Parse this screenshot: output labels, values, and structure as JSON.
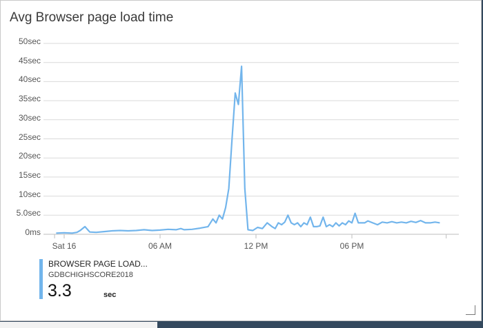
{
  "title": "Avg Browser page load time",
  "legend": {
    "name": "BROWSER PAGE LOAD...",
    "resource": "GDBCHIGHSCORE2018",
    "value": "3.3",
    "unit": "sec",
    "color": "#72b5ec"
  },
  "chart_data": {
    "type": "line",
    "title": "Avg Browser page load time",
    "ylim": [
      0,
      50
    ],
    "y_ticks": [
      "0ms",
      "5.0sec",
      "10sec",
      "15sec",
      "20sec",
      "25sec",
      "30sec",
      "35sec",
      "40sec",
      "45sec",
      "50sec"
    ],
    "x_ticks": [
      "Sat 16",
      "06 AM",
      "12 PM",
      "06 PM"
    ],
    "x_tick_hours": [
      0,
      6,
      12,
      18
    ],
    "grid": true,
    "series": [
      {
        "name": "BROWSER PAGE LOAD...",
        "color": "#72b5ec",
        "x": [
          -0.5,
          0,
          0.5,
          0.8,
          1.0,
          1.3,
          1.6,
          2,
          2.5,
          3,
          3.5,
          4,
          4.5,
          5,
          5.5,
          6,
          6.5,
          7,
          7.3,
          7.5,
          8,
          8.5,
          9,
          9.3,
          9.5,
          9.7,
          9.9,
          10.1,
          10.3,
          10.5,
          10.7,
          10.9,
          11.1,
          11.3,
          11.5,
          11.8,
          12.1,
          12.4,
          12.7,
          13,
          13.2,
          13.4,
          13.6,
          13.8,
          14,
          14.2,
          14.4,
          14.6,
          14.8,
          15,
          15.2,
          15.4,
          15.6,
          15.8,
          16,
          16.2,
          16.4,
          16.6,
          16.8,
          17,
          17.2,
          17.4,
          17.6,
          17.8,
          18,
          18.2,
          18.4,
          18.6,
          18.8,
          19,
          19.3,
          19.6,
          19.9,
          20.2,
          20.5,
          20.8,
          21.1,
          21.4,
          21.7,
          22,
          22.3,
          22.6,
          22.9,
          23.2,
          23.5
        ],
        "y": [
          0.3,
          0.4,
          0.3,
          0.5,
          1.0,
          2.0,
          0.6,
          0.5,
          0.7,
          0.9,
          1.0,
          0.9,
          1.0,
          1.2,
          1.0,
          1.1,
          1.3,
          1.2,
          1.5,
          1.2,
          1.3,
          1.6,
          2.0,
          4.0,
          3.0,
          5.0,
          4.0,
          7.0,
          12.0,
          25.0,
          37.0,
          34.0,
          44.0,
          12.0,
          1.2,
          1.0,
          1.8,
          1.5,
          3.0,
          2.0,
          1.5,
          3.0,
          2.5,
          3.2,
          5.0,
          3.0,
          2.5,
          3.0,
          2.0,
          3.0,
          2.5,
          4.5,
          2.0,
          2.0,
          2.2,
          4.5,
          2.0,
          2.5,
          2.0,
          3.0,
          2.2,
          3.0,
          2.5,
          3.5,
          3.0,
          5.5,
          3.0,
          3.0,
          3.0,
          3.5,
          3.0,
          2.5,
          3.2,
          3.0,
          3.3,
          3.0,
          3.2,
          3.0,
          3.4,
          3.1,
          3.6,
          3.0,
          3.0,
          3.2,
          3.0
        ]
      }
    ]
  }
}
